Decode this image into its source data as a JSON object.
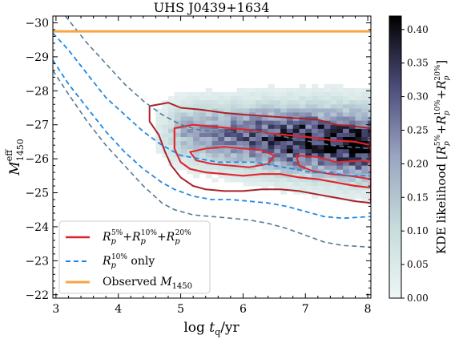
{
  "chart_data": {
    "type": "heatmap",
    "title": "UHS J0439+1634",
    "xlabel": "log t_q/yr",
    "ylabel": "M_1450^eff",
    "xlim": [
      2.95,
      8.05
    ],
    "ylim": [
      -21.9,
      -30.2
    ],
    "y_inverted": true,
    "xticks": [
      3,
      4,
      5,
      6,
      7,
      8
    ],
    "yticks": [
      -22,
      -23,
      -24,
      -25,
      -26,
      -27,
      -28,
      -29,
      -30
    ],
    "observed_M1450": -29.75,
    "colorbar": {
      "label": "KDE likelihood [R_p^5%+R_p^10%+R_p^20%]",
      "range": [
        0.0,
        0.42
      ],
      "ticks": [
        0.0,
        0.05,
        0.1,
        0.15,
        0.2,
        0.25,
        0.3,
        0.35,
        0.4
      ],
      "colors": [
        "#eef5f5",
        "#c6dcdc",
        "#9aa6c2",
        "#4c4c7a",
        "#000000"
      ]
    },
    "legend": {
      "position": "lower-left",
      "entries": [
        {
          "label": "R_p^5%+R_p^10%+R_p^20%",
          "color": "#d62728",
          "style": "solid"
        },
        {
          "label": "R_p^10% only",
          "color": "#1e88e5",
          "style": "dashed"
        },
        {
          "label": "Observed M_1450",
          "color": "#f5a742",
          "style": "solid"
        }
      ]
    },
    "series": [
      {
        "name": "R_p^10% only",
        "x": [
          2.95,
          3.2,
          3.5,
          3.8,
          4.1,
          4.4,
          4.7,
          5.0,
          5.3,
          5.6,
          5.9,
          6.2,
          6.5,
          6.8,
          7.1,
          7.4,
          7.7,
          8.05
        ],
        "y": [
          -29.7,
          -29.2,
          -28.5,
          -27.8,
          -27.3,
          -26.8,
          -26.4,
          -26.1,
          -26.0,
          -25.9,
          -25.9,
          -25.9,
          -25.8,
          -25.7,
          -25.6,
          -25.6,
          -25.5,
          -25.5
        ]
      },
      {
        "name": "R_p^10% only",
        "x": [
          2.95,
          3.2,
          3.5,
          3.8,
          4.1,
          4.4,
          4.7,
          4.9,
          5.2,
          5.5,
          5.8,
          6.1,
          6.4,
          6.7,
          7.0,
          7.3,
          7.6,
          8.05
        ],
        "y": [
          -28.9,
          -28.2,
          -27.5,
          -26.8,
          -26.2,
          -25.7,
          -25.3,
          -25.1,
          -24.9,
          -24.8,
          -24.8,
          -24.75,
          -24.7,
          -24.6,
          -24.45,
          -24.3,
          -24.25,
          -24.3
        ]
      }
    ],
    "dashed_gray_curves": [
      {
        "x": [
          3.15,
          3.5,
          3.8,
          4.1,
          4.4,
          4.7,
          5.0,
          5.3,
          5.6,
          5.9,
          6.2,
          6.5,
          6.8,
          7.1,
          7.4,
          7.7,
          8.05
        ],
        "y": [
          -30.2,
          -29.4,
          -28.8,
          -28.2,
          -27.7,
          -27.3,
          -27.0,
          -26.85,
          -26.8,
          -26.8,
          -26.8,
          -26.7,
          -26.6,
          -26.5,
          -26.4,
          -26.35,
          -26.3
        ]
      },
      {
        "x": [
          2.95,
          3.2,
          3.5,
          3.8,
          4.1,
          4.4,
          4.7,
          4.9,
          5.2,
          5.5,
          5.8,
          6.1,
          6.4,
          6.7,
          7.0,
          7.3,
          7.6,
          8.05
        ],
        "y": [
          -28.6,
          -27.9,
          -27.1,
          -26.4,
          -25.8,
          -25.2,
          -24.7,
          -24.5,
          -24.35,
          -24.3,
          -24.25,
          -24.2,
          -24.1,
          -23.95,
          -23.75,
          -23.55,
          -23.45,
          -23.4
        ]
      }
    ],
    "contours": [
      {
        "name": "outer",
        "points": [
          [
            4.5,
            -27.55
          ],
          [
            4.8,
            -27.65
          ],
          [
            5.0,
            -27.5
          ],
          [
            5.3,
            -27.45
          ],
          [
            5.7,
            -27.35
          ],
          [
            6.0,
            -27.3
          ],
          [
            6.4,
            -27.25
          ],
          [
            6.8,
            -27.2
          ],
          [
            7.2,
            -27.15
          ],
          [
            7.5,
            -27.0
          ],
          [
            7.8,
            -26.95
          ],
          [
            8.05,
            -26.9
          ],
          [
            8.05,
            -24.7
          ],
          [
            7.8,
            -24.75
          ],
          [
            7.5,
            -24.85
          ],
          [
            7.2,
            -24.95
          ],
          [
            6.9,
            -25.05
          ],
          [
            6.6,
            -25.1
          ],
          [
            6.3,
            -25.1
          ],
          [
            6.0,
            -25.05
          ],
          [
            5.7,
            -25.05
          ],
          [
            5.4,
            -25.1
          ],
          [
            5.2,
            -25.2
          ],
          [
            5.0,
            -25.45
          ],
          [
            4.85,
            -25.8
          ],
          [
            4.75,
            -26.2
          ],
          [
            4.65,
            -26.7
          ],
          [
            4.5,
            -27.1
          ]
        ]
      },
      {
        "name": "middle",
        "points": [
          [
            4.9,
            -26.9
          ],
          [
            5.2,
            -27.0
          ],
          [
            5.5,
            -26.95
          ],
          [
            5.8,
            -26.9
          ],
          [
            6.1,
            -26.85
          ],
          [
            6.4,
            -26.75
          ],
          [
            6.7,
            -26.7
          ],
          [
            7.0,
            -26.65
          ],
          [
            7.4,
            -26.55
          ],
          [
            7.8,
            -26.5
          ],
          [
            8.05,
            -26.4
          ],
          [
            8.05,
            -25.15
          ],
          [
            7.8,
            -25.2
          ],
          [
            7.5,
            -25.3
          ],
          [
            7.2,
            -25.4
          ],
          [
            6.9,
            -25.45
          ],
          [
            6.6,
            -25.55
          ],
          [
            6.3,
            -25.55
          ],
          [
            6.0,
            -25.5
          ],
          [
            5.7,
            -25.55
          ],
          [
            5.4,
            -25.6
          ],
          [
            5.15,
            -25.7
          ],
          [
            5.0,
            -25.9
          ],
          [
            4.9,
            -26.3
          ]
        ]
      },
      {
        "name": "inner",
        "points": [
          [
            5.15,
            -26.2
          ],
          [
            5.4,
            -26.3
          ],
          [
            5.7,
            -26.35
          ],
          [
            6.0,
            -26.3
          ],
          [
            6.3,
            -26.25
          ],
          [
            6.5,
            -26.1
          ],
          [
            6.4,
            -25.85
          ],
          [
            6.1,
            -25.75
          ],
          [
            5.8,
            -25.8
          ],
          [
            5.5,
            -25.85
          ],
          [
            5.25,
            -25.95
          ]
        ]
      },
      {
        "name": "inner-right",
        "points": [
          [
            6.85,
            -26.1
          ],
          [
            7.2,
            -26.05
          ],
          [
            7.5,
            -25.9
          ],
          [
            7.9,
            -25.95
          ],
          [
            8.05,
            -25.9
          ],
          [
            8.05,
            -25.4
          ],
          [
            7.7,
            -25.5
          ],
          [
            7.4,
            -25.55
          ],
          [
            7.1,
            -25.65
          ],
          [
            6.9,
            -25.8
          ]
        ]
      }
    ]
  }
}
